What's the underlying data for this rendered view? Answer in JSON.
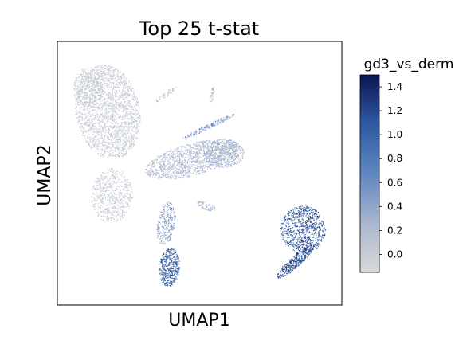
{
  "chart_data": {
    "type": "scatter",
    "title": "Top 25 t-stat",
    "xlabel": "UMAP1",
    "ylabel": "UMAP2",
    "x_ticks_shown": false,
    "y_ticks_shown": false,
    "grid": false,
    "colorbar": {
      "label": "gd3_vs_derm",
      "min": -0.15,
      "max": 1.5,
      "ticks": [
        "0.0",
        "0.2",
        "0.4",
        "0.6",
        "0.8",
        "1.0",
        "1.2",
        "1.4"
      ],
      "tick_values": [
        0.0,
        0.2,
        0.4,
        0.6,
        0.8,
        1.0,
        1.2,
        1.4
      ],
      "colormap": [
        "#d9d9d9",
        "#aab6cf",
        "#5f86c0",
        "#2e5aa3",
        "#0b1550"
      ]
    },
    "clusters": [
      {
        "label": "upper-left large cluster",
        "level": "low",
        "mean_score": 0.0
      },
      {
        "label": "central elongated cluster",
        "level": "low-moderate",
        "mean_score": 0.15
      },
      {
        "label": "thin upper arm",
        "level": "moderate",
        "mean_score": 0.4
      },
      {
        "label": "lower-center tail",
        "level": "high",
        "mean_score": 0.9
      },
      {
        "label": "right island",
        "level": "high",
        "mean_score": 1.0
      },
      {
        "label": "lower-right arm",
        "level": "high",
        "mean_score": 1.0
      }
    ]
  }
}
